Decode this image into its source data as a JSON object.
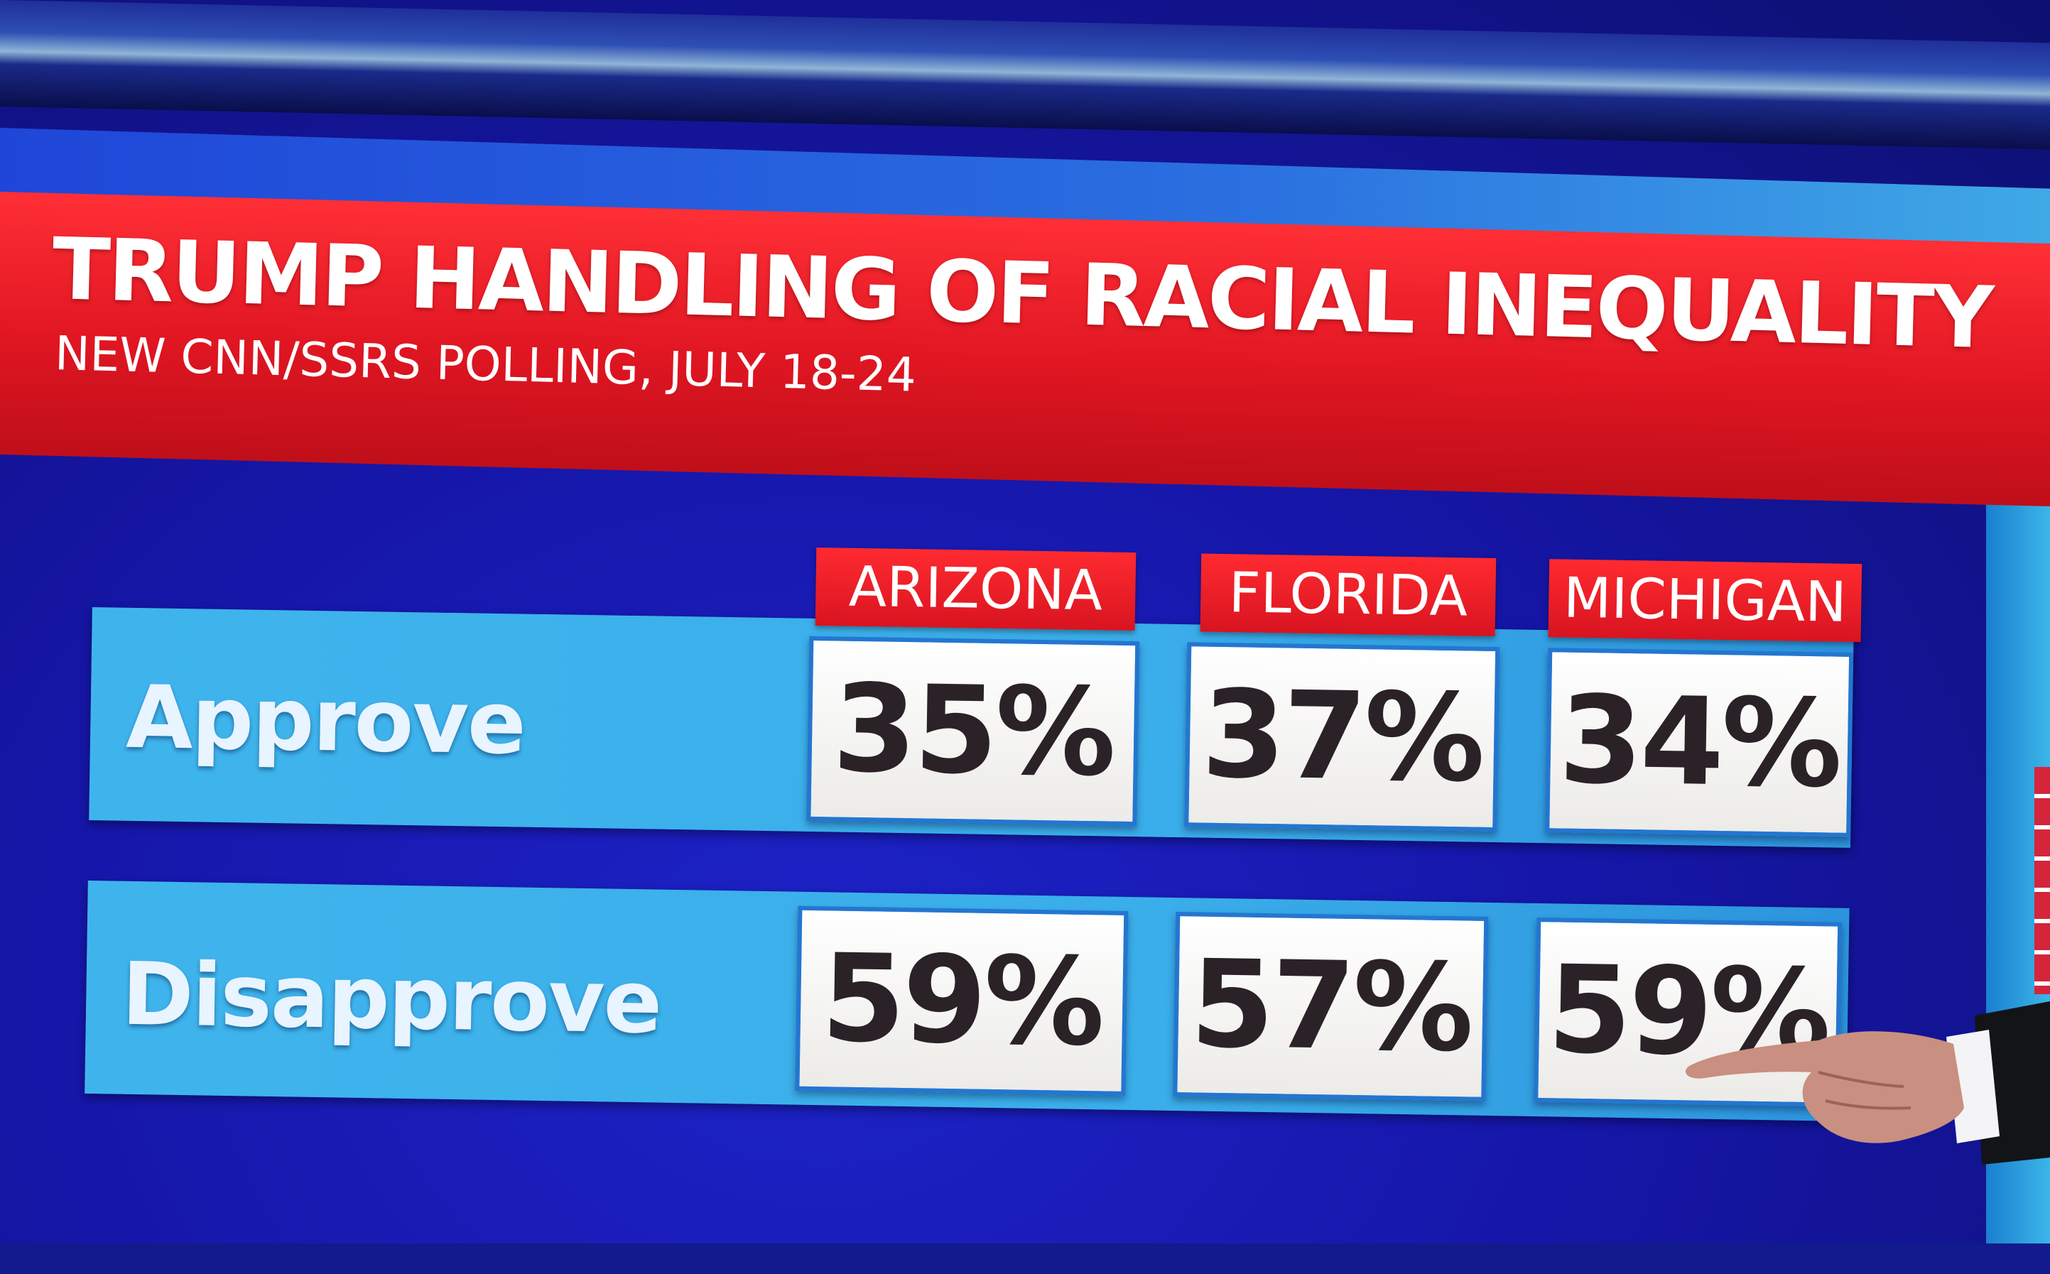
{
  "graphic": {
    "title": "TRUMP HANDLING OF RACIAL INEQUALITY",
    "subtitle": "NEW CNN/SSRS POLLING, JULY 18-24"
  },
  "columns": [
    "ARIZONA",
    "FLORIDA",
    "MICHIGAN"
  ],
  "rows": [
    {
      "label": "Approve",
      "values": [
        "35%",
        "37%",
        "34%"
      ]
    },
    {
      "label": "Disapprove",
      "values": [
        "59%",
        "57%",
        "59%"
      ]
    }
  ],
  "colors": {
    "banner_red": "#e01622",
    "background_blue": "#1616a8",
    "row_band_blue": "#3fb4ec",
    "cell_white": "#ffffff",
    "value_text": "#2a2226"
  }
}
